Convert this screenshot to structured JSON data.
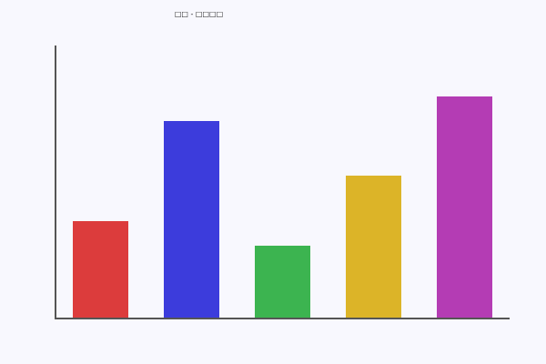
{
  "chart_data": {
    "type": "bar",
    "title": "□□ - □□□□",
    "xlabel": "",
    "ylabel": "",
    "values": [
      107,
      217,
      80,
      157,
      244
    ],
    "colors": [
      "#dc3c3c",
      "#3c3cdc",
      "#3cb450",
      "#dcb428",
      "#b43cb4"
    ],
    "ylim": [
      0,
      300
    ],
    "grid": false,
    "axis_color": "#555555",
    "background": "#f8f8fe"
  }
}
